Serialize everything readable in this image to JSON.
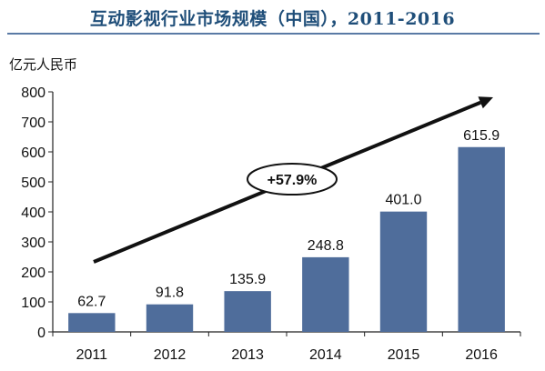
{
  "title": "互动影视行业市场规模（中国），2011-2016",
  "chart_data": {
    "type": "bar",
    "ylabel": "亿元人民币",
    "categories": [
      "2011",
      "2012",
      "2013",
      "2014",
      "2015",
      "2016"
    ],
    "values": [
      62.7,
      91.8,
      135.9,
      248.8,
      401.0,
      615.9
    ],
    "value_labels": [
      "62.7",
      "91.8",
      "135.9",
      "248.8",
      "401.0",
      "615.9"
    ],
    "ylim": [
      0,
      800
    ],
    "yticks": [
      0,
      100,
      200,
      300,
      400,
      500,
      600,
      700,
      800
    ],
    "bar_color": "#4f6d9b",
    "grid": false,
    "annotation": {
      "text": "+57.9%",
      "kind": "trend-arrow"
    }
  }
}
